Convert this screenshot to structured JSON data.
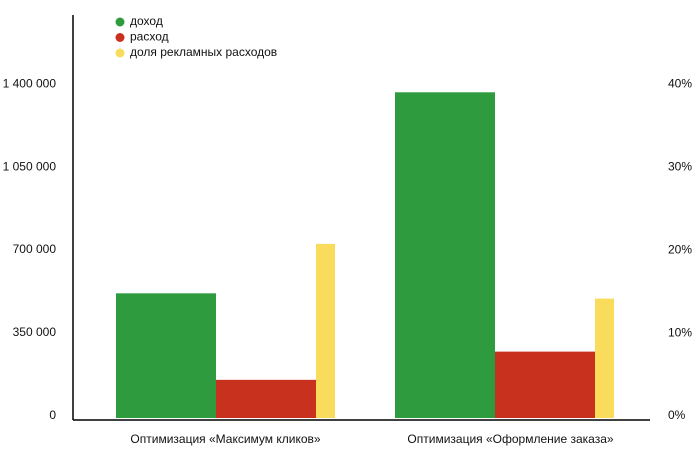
{
  "chart_data": {
    "type": "bar",
    "categories": [
      "Оптимизация «Максимум кликов»",
      "Оптимизация «Оформление заказа»"
    ],
    "series": [
      {
        "name": "доход",
        "color": "#2e9b3f",
        "values": [
          526000,
          1374000
        ]
      },
      {
        "name": "расход",
        "color": "#c9311f",
        "values": [
          161000,
          280000
        ]
      },
      {
        "name": "доля рекламных расходов",
        "color": "#f9dc5c",
        "axis": "y2",
        "values": [
          21,
          14.4
        ]
      }
    ],
    "ylim": [
      0,
      1700000
    ],
    "yticks": [
      0,
      {
        "value": 350000,
        "label": "350 000"
      },
      {
        "value": 700000,
        "label": "700 000"
      },
      {
        "value": 1050000,
        "label": "1 050 000"
      },
      {
        "value": 1400000,
        "label": "1 400 000"
      }
    ],
    "y2lim": [
      0,
      48.6
    ],
    "y2ticks": [
      {
        "value": 0,
        "label": "0%"
      },
      {
        "value": 10,
        "label": "10%"
      },
      {
        "value": 20,
        "label": "20%"
      },
      {
        "value": 30,
        "label": "30%"
      },
      {
        "value": 40,
        "label": "40%"
      }
    ],
    "legend": "top-left",
    "grid": false
  }
}
